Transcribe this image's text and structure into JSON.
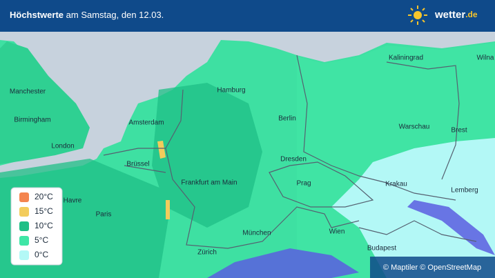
{
  "header": {
    "title_bold": "Höchstwerte",
    "title_rest": "am Samstag, den 12.03.",
    "logo_main": "wetter",
    "logo_suffix": ".de"
  },
  "cities": [
    "Manchester",
    "Birmingham",
    "London",
    "Amsterdam",
    "Hamburg",
    "Berlin",
    "Kaliningrad",
    "Wilna",
    "Warschau",
    "Brest",
    "Brüssel",
    "Dresden",
    "Prag",
    "Krakau",
    "Lemberg",
    "Frankfurt am Main",
    "Havre",
    "Paris",
    "München",
    "Wien",
    "Zürich",
    "Budapest"
  ],
  "legend": [
    {
      "label": "20°C",
      "color": "#f4854f"
    },
    {
      "label": "15°C",
      "color": "#f3cc5c"
    },
    {
      "label": "10°C",
      "color": "#1fbf86"
    },
    {
      "label": "5°C",
      "color": "#3fe6a6"
    },
    {
      "label": "0°C",
      "color": "#b3f8f6"
    }
  ],
  "attribution": "© Maptiler © OpenStreetMap"
}
